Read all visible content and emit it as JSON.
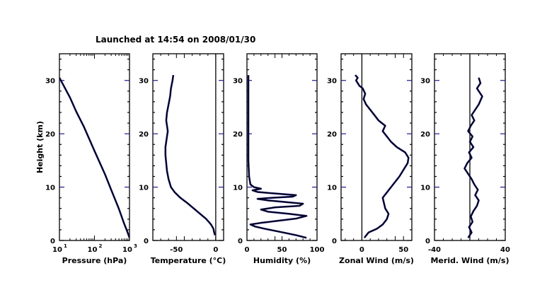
{
  "title": "Launched at 14:54 on 2008/01/30",
  "colors": {
    "frame": "#000000",
    "trace": "#000000",
    "trace_shadow": "#1a1a8c",
    "tick_accent": "#1a1a8c"
  },
  "chart_data": [
    {
      "type": "line",
      "ylabel": "Height (km)",
      "xlabel": "Pressure (hPa)",
      "xscale": "log",
      "xlim": [
        10,
        1000
      ],
      "ylim": [
        0,
        35
      ],
      "xticks": [
        {
          "label": "10",
          "sup": "1"
        },
        {
          "label": "10",
          "sup": "2"
        },
        {
          "label": "10",
          "sup": "3"
        }
      ],
      "yticks": [
        "0",
        "10",
        "20",
        "30"
      ],
      "series": [
        {
          "x": [
            1000,
            850,
            700,
            500,
            300,
            200,
            100,
            50,
            30,
            20,
            10
          ],
          "y": [
            0.5,
            1.8,
            3.2,
            5.9,
            9.5,
            12.4,
            16.8,
            21.3,
            24.2,
            26.8,
            30.5
          ]
        }
      ]
    },
    {
      "type": "line",
      "xlabel": "Temperature (°C)",
      "xlim": [
        -80,
        10
      ],
      "ylim": [
        0,
        35
      ],
      "xticks": [
        "-50",
        "0"
      ],
      "yticks": [
        "0",
        "10",
        "20",
        "30"
      ],
      "reference_line_x": 0,
      "series": [
        {
          "x": [
            -1,
            -2,
            -3,
            -6,
            -12,
            -20,
            -28,
            -36,
            -45,
            -52,
            -57,
            -60,
            -62,
            -63,
            -64,
            -64,
            -63,
            -62,
            -61,
            -62,
            -63,
            -62,
            -60,
            -58,
            -57,
            -55,
            -54
          ],
          "y": [
            1.0,
            1.5,
            2.2,
            3.0,
            4.0,
            5.0,
            6.0,
            7.0,
            8.0,
            9.0,
            10.0,
            11.5,
            13.0,
            14.5,
            16.0,
            17.5,
            18.5,
            19.5,
            20.5,
            21.5,
            22.5,
            24.0,
            25.5,
            27.0,
            28.5,
            30.0,
            31.0
          ]
        }
      ]
    },
    {
      "type": "line",
      "xlabel": "Humidity (%)",
      "xlim": [
        0,
        100
      ],
      "ylim": [
        0,
        35
      ],
      "xticks": [
        "0",
        "50",
        "100"
      ],
      "yticks": [
        "0",
        "10",
        "20",
        "30"
      ],
      "series": [
        {
          "x": [
            85,
            70,
            55,
            40,
            25,
            12,
            5,
            20,
            45,
            70,
            85,
            60,
            30,
            20,
            40,
            75,
            80,
            55,
            30,
            15,
            35,
            65,
            70,
            40,
            15,
            8,
            20,
            10,
            5,
            3,
            2,
            2,
            2,
            2,
            2
          ],
          "y": [
            0.5,
            1.0,
            1.4,
            1.8,
            2.2,
            2.6,
            3.0,
            3.3,
            3.7,
            4.1,
            4.6,
            5.0,
            5.4,
            5.8,
            6.2,
            6.5,
            6.9,
            7.2,
            7.5,
            7.8,
            8.0,
            8.2,
            8.5,
            8.8,
            9.1,
            9.4,
            9.7,
            10.0,
            10.5,
            12.0,
            15.0,
            20.0,
            25.0,
            28.0,
            31.0
          ]
        }
      ]
    },
    {
      "type": "line",
      "xlabel": "Zonal Wind (m/s)",
      "xlim": [
        -25,
        60
      ],
      "ylim": [
        0,
        35
      ],
      "xticks": [
        "0",
        "50"
      ],
      "yticks": [
        "0",
        "10",
        "20",
        "30"
      ],
      "reference_line_x": 0,
      "series": [
        {
          "x": [
            3,
            8,
            18,
            25,
            30,
            32,
            28,
            25,
            35,
            45,
            55,
            56,
            52,
            42,
            35,
            30,
            25,
            28,
            20,
            15,
            10,
            5,
            2,
            4,
            1,
            -3,
            -5,
            -7,
            -5,
            -8
          ],
          "y": [
            0.5,
            1.5,
            2.2,
            3.0,
            4.0,
            5.0,
            6.0,
            8.0,
            10.0,
            12.0,
            14.5,
            15.5,
            16.5,
            17.5,
            18.5,
            19.5,
            20.5,
            21.5,
            22.5,
            23.5,
            24.5,
            25.5,
            26.5,
            27.5,
            28.5,
            29.0,
            29.5,
            30.0,
            30.5,
            31.0
          ]
        }
      ]
    },
    {
      "type": "line",
      "xlabel": "Merid. Wind (m/s)",
      "xlim": [
        -40,
        40
      ],
      "ylim": [
        0,
        35
      ],
      "xticks": [
        "-40",
        "40"
      ],
      "yticks": [
        "0",
        "10",
        "20",
        "30"
      ],
      "reference_line_x": 0,
      "series": [
        {
          "x": [
            -2,
            2,
            -1,
            3,
            1,
            4,
            8,
            10,
            6,
            9,
            5,
            2,
            -2,
            -6,
            -3,
            2,
            -1,
            4,
            0,
            3,
            -2,
            1,
            5,
            2,
            6,
            10,
            14,
            8,
            12,
            10
          ],
          "y": [
            0.5,
            1.5,
            2.5,
            3.5,
            4.5,
            5.5,
            6.5,
            7.5,
            8.5,
            9.5,
            10.5,
            11.5,
            12.5,
            13.5,
            14.5,
            15.5,
            16.5,
            17.5,
            18.5,
            19.5,
            20.5,
            21.5,
            22.5,
            23.5,
            24.5,
            25.5,
            27.0,
            28.5,
            29.5,
            30.5
          ]
        }
      ]
    }
  ]
}
